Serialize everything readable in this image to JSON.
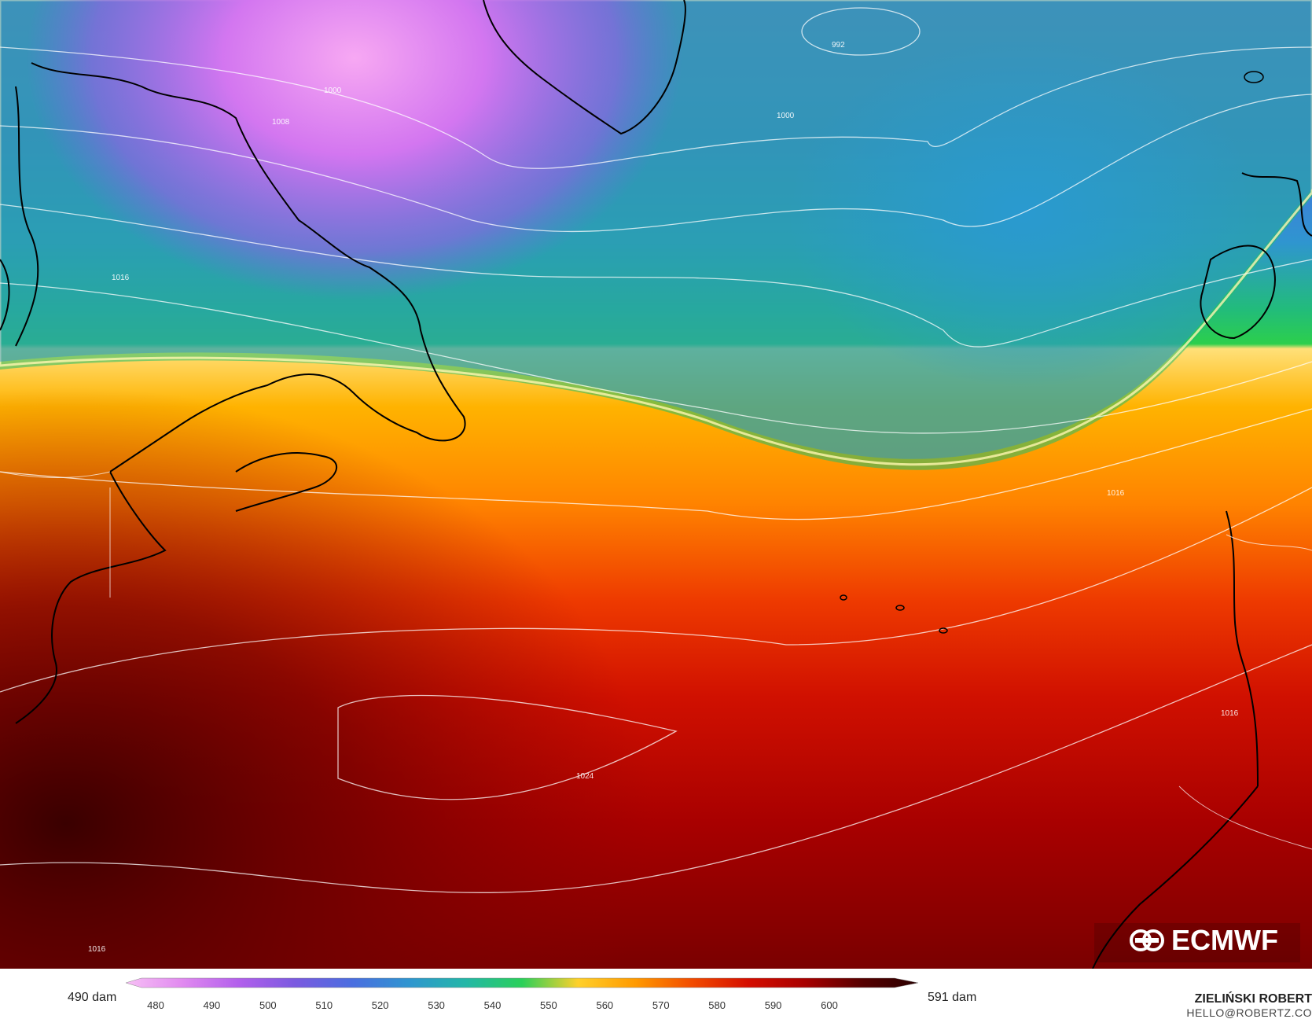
{
  "map": {
    "pressure_labels": [
      "992",
      "1000",
      "1000",
      "1008",
      "1016",
      "1016",
      "1016",
      "1016",
      "1024"
    ]
  },
  "logo": {
    "text": "ECMWF"
  },
  "legend": {
    "min_value": "490 dam",
    "max_value": "591 dam",
    "ticks": [
      "480",
      "490",
      "500",
      "510",
      "520",
      "530",
      "540",
      "550",
      "560",
      "570",
      "580",
      "590",
      "600"
    ],
    "colors": [
      "#f7c0f5",
      "#e18af0",
      "#b25fec",
      "#7a5ae0",
      "#4a6ee0",
      "#2f95d0",
      "#23b7a7",
      "#2ad05a",
      "#ffd02a",
      "#ff9a00",
      "#f24c00",
      "#d40d00",
      "#a80000",
      "#560000",
      "#2a0000"
    ]
  },
  "credit": {
    "name": "ZIELIŃSKI ROBERT",
    "email": "HELLO@ROBERTZ.CO"
  }
}
